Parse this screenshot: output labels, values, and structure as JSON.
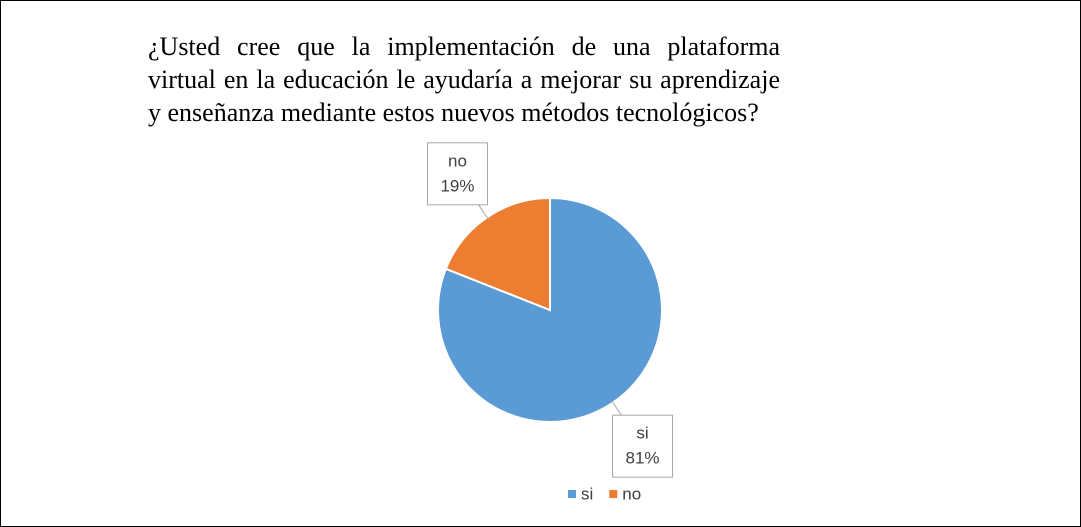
{
  "chart_data": {
    "type": "pie",
    "title": "¿Usted cree que la implementación de una plataforma virtual en la educación le ayudaría a mejorar su aprendizaje y enseñanza mediante estos nuevos métodos tecnológicos?",
    "categories": [
      "si",
      "no"
    ],
    "values": [
      81,
      19
    ],
    "value_labels": [
      "81%",
      "19%"
    ],
    "colors": [
      "#5b9bd5",
      "#ed7d31"
    ],
    "legend": "bottom"
  }
}
